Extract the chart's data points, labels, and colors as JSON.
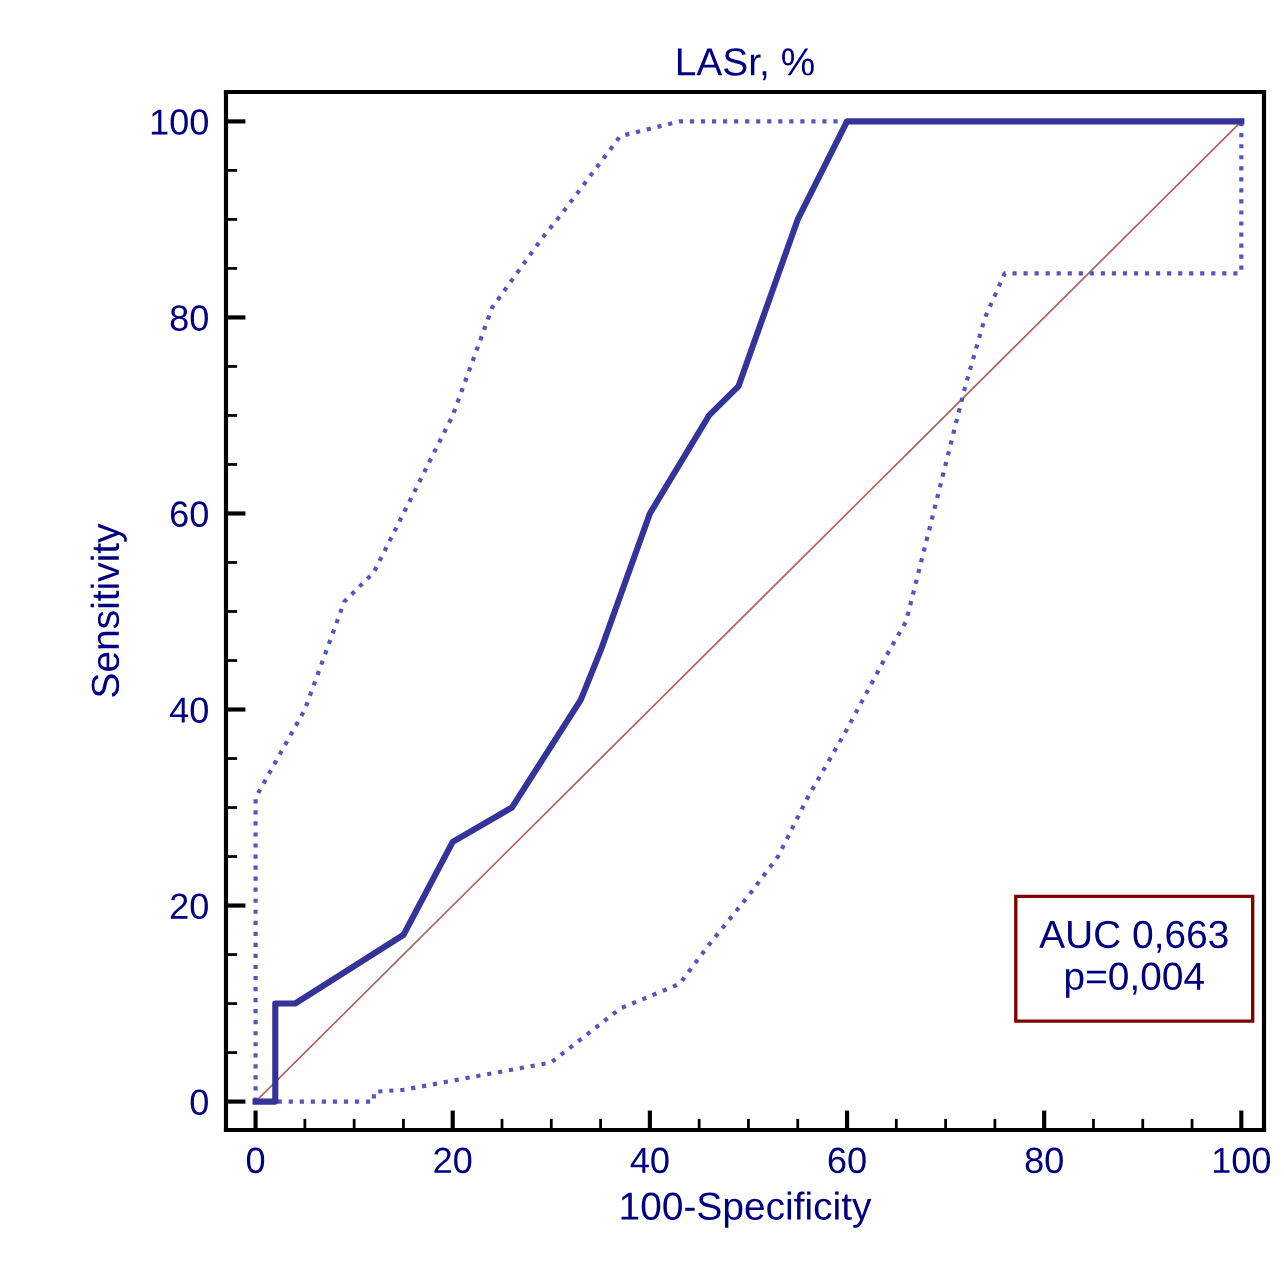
{
  "chart_data": {
    "type": "line",
    "title": "LASr, %",
    "xlabel": "100-Specificity",
    "ylabel": "Sensitivity",
    "xlim": [
      -3,
      102.3
    ],
    "ylim": [
      -2.9,
      103
    ],
    "xticks": [
      0,
      20,
      40,
      60,
      80,
      100
    ],
    "yticks": [
      0,
      20,
      40,
      60,
      80,
      100
    ],
    "grid": false,
    "legend": false,
    "marker": "none",
    "series": [
      {
        "color": "#b06060",
        "line_style": "solid",
        "x": [
          0,
          100
        ],
        "values": [
          0,
          100
        ]
      },
      {
        "color": "#5555bb",
        "line_style": "dotted",
        "x": [
          0,
          0,
          5,
          9,
          12,
          15,
          20,
          24,
          29,
          31,
          37,
          43,
          100,
          100
        ],
        "values": [
          0,
          31,
          40,
          51,
          54,
          60,
          70,
          81,
          88,
          90.5,
          98.5,
          100,
          100,
          84.5
        ]
      },
      {
        "color": "#5555bb",
        "line_style": "dotted",
        "x": [
          0,
          12,
          12,
          15,
          30,
          37,
          43,
          46,
          50,
          53,
          56,
          60,
          64,
          66,
          68,
          70,
          72,
          74,
          76,
          100
        ],
        "values": [
          0,
          0,
          1,
          1.2,
          4,
          9.5,
          12,
          16,
          21,
          25,
          31,
          38,
          45.5,
          49,
          57,
          65,
          73,
          80,
          84.5,
          84.5
        ]
      },
      {
        "color": "#333399",
        "line_style": "solid",
        "x": [
          0,
          2,
          2,
          4,
          15,
          20,
          26,
          33,
          35,
          40,
          46,
          49,
          55,
          60,
          100
        ],
        "values": [
          0,
          0,
          10,
          10,
          17,
          26.5,
          30,
          41,
          46,
          60,
          70,
          73,
          90,
          100,
          100
        ]
      }
    ],
    "annotations": [
      "AUC 0,663\np=0,004"
    ]
  }
}
